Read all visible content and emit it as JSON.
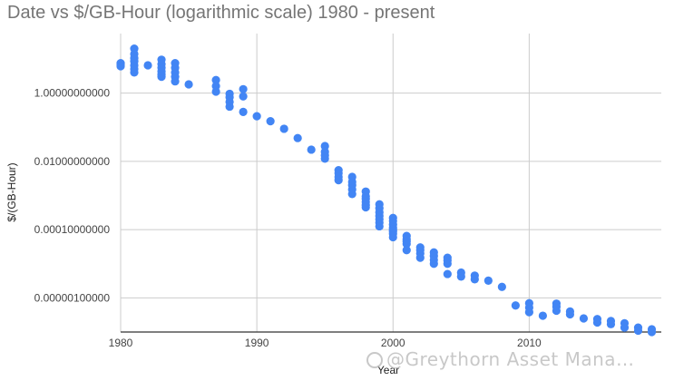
{
  "colors": {
    "series": "#4285f4",
    "grid": "#cccccc",
    "axis": "#333333",
    "title": "#757575"
  },
  "watermark": {
    "text": "@Greythorn Asset Mana…"
  },
  "chart_data": {
    "type": "scatter",
    "title": "Date vs $/GB-Hour (logarithmic scale) 1980 - present",
    "xlabel": "Year",
    "ylabel": "$/(GB-Hour)",
    "y_scale": "log",
    "xlim": [
      1980,
      2019.7
    ],
    "ylim": [
      1e-07,
      30
    ],
    "x_ticks": [
      {
        "value": 1980,
        "label": "1980"
      },
      {
        "value": 1990,
        "label": "1990"
      },
      {
        "value": 2000,
        "label": "2000"
      },
      {
        "value": 2010,
        "label": "2010"
      }
    ],
    "y_ticks": [
      {
        "value": 1,
        "label": "1.00000000000"
      },
      {
        "value": 0.01,
        "label": "0.01000000000"
      },
      {
        "value": 0.0001,
        "label": "0.00010000000"
      },
      {
        "value": 1e-06,
        "label": "0.00000100000"
      }
    ],
    "grid": true,
    "legend": "none",
    "series": [
      {
        "x": [
          1980,
          1980,
          1980,
          1981,
          1981,
          1981,
          1981,
          1981,
          1981,
          1981,
          1982,
          1983,
          1983,
          1983,
          1983,
          1983,
          1983,
          1984,
          1984,
          1984,
          1984,
          1984,
          1985,
          1987,
          1987,
          1987,
          1988,
          1988,
          1988,
          1988,
          1989,
          1989,
          1989,
          1990,
          1991,
          1992,
          1993,
          1994,
          1995,
          1995,
          1995,
          1995,
          1996,
          1996,
          1996,
          1996,
          1997,
          1997,
          1997,
          1997,
          1997,
          1998,
          1998,
          1998,
          1998,
          1998,
          1998,
          1999,
          1999,
          1999,
          1999,
          1999,
          1999,
          1999,
          2000,
          2000,
          2000,
          2000,
          2000,
          2000,
          2000,
          2000,
          2001,
          2001,
          2001,
          2001,
          2001,
          2002,
          2002,
          2002,
          2002,
          2003,
          2003,
          2003,
          2003,
          2004,
          2004,
          2004,
          2004,
          2005,
          2005,
          2006,
          2006,
          2007,
          2008,
          2009,
          2010,
          2010,
          2010,
          2011,
          2012,
          2012,
          2012,
          2013,
          2013,
          2014,
          2015,
          2015,
          2016,
          2016,
          2017,
          2017,
          2018,
          2018,
          2019,
          2019
        ],
        "y": [
          7.5,
          6.8,
          6.1,
          20,
          14,
          10.5,
          8.5,
          6.5,
          5.1,
          4,
          6.5,
          9.5,
          7,
          5.5,
          4.3,
          3.5,
          3,
          7.5,
          5.5,
          4,
          3,
          2.2,
          1.8,
          2.4,
          1.6,
          1.1,
          0.95,
          0.75,
          0.55,
          0.4,
          1.3,
          0.8,
          0.28,
          0.21,
          0.15,
          0.09,
          0.048,
          0.022,
          0.028,
          0.019,
          0.015,
          0.012,
          0.0055,
          0.0045,
          0.0035,
          0.0028,
          0.0035,
          0.0025,
          0.002,
          0.0015,
          0.0011,
          0.0013,
          0.00095,
          0.0008,
          0.00065,
          0.00052,
          0.00045,
          0.00055,
          0.00042,
          0.00032,
          0.00025,
          0.0002,
          0.00016,
          0.000125,
          0.00022,
          0.00018,
          0.00014,
          0.000115,
          0.0001,
          8.8e-05,
          7.5e-05,
          6e-05,
          6.5e-05,
          5.2e-05,
          4.5e-05,
          3.8e-05,
          2.5e-05,
          3e-05,
          2.5e-05,
          2e-05,
          1.5e-05,
          2.15e-05,
          1.7e-05,
          1.3e-05,
          1e-05,
          1.5e-05,
          1.25e-05,
          1e-05,
          5e-06,
          5.5e-06,
          4.2e-06,
          4.5e-06,
          3.5e-06,
          3.2e-06,
          2.1e-06,
          6e-07,
          7e-07,
          5.2e-07,
          3.8e-07,
          3e-07,
          6.8e-07,
          5.5e-07,
          4.2e-07,
          4e-07,
          3.3e-07,
          2.5e-07,
          2.4e-07,
          1.9e-07,
          2.1e-07,
          1.7e-07,
          1.8e-07,
          1.35e-07,
          1.35e-07,
          1.1e-07,
          1.2e-07,
          1e-07
        ]
      }
    ]
  }
}
